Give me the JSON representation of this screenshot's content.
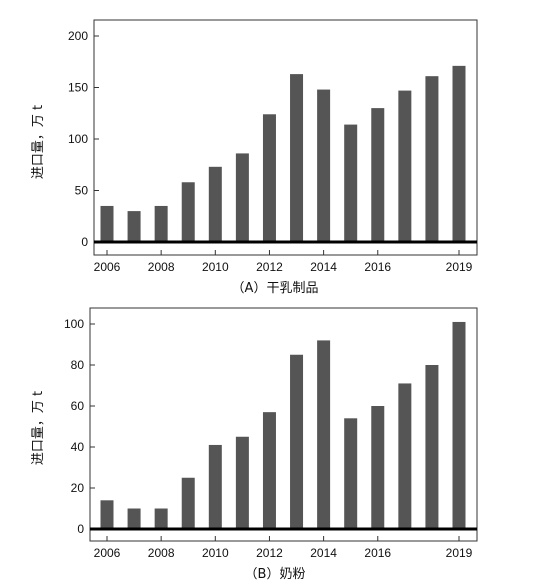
{
  "chart_data": [
    {
      "type": "bar",
      "caption": "（A）干乳制品",
      "ylabel": "进口量，万 t",
      "xlabel": "",
      "ylim": [
        0,
        200
      ],
      "yticks": [
        0,
        50,
        100,
        150,
        200
      ],
      "x": [
        2006,
        2007,
        2008,
        2009,
        2010,
        2011,
        2012,
        2013,
        2014,
        2015,
        2016,
        2017,
        2018,
        2019
      ],
      "xtick_labels": [
        "2006",
        "2008",
        "2010",
        "2012",
        "2014",
        "2016",
        "2019"
      ],
      "xtick_years": [
        2006,
        2008,
        2010,
        2012,
        2014,
        2016,
        2019
      ],
      "values": [
        35,
        30,
        35,
        58,
        73,
        86,
        124,
        163,
        148,
        114,
        130,
        147,
        161,
        171
      ],
      "bar_color": "#555555"
    },
    {
      "type": "bar",
      "caption": "（B）奶粉",
      "ylabel": "进口量，万 t",
      "xlabel": "",
      "ylim": [
        0,
        100
      ],
      "yticks": [
        0,
        20,
        40,
        60,
        80,
        100
      ],
      "x": [
        2006,
        2007,
        2008,
        2009,
        2010,
        2011,
        2012,
        2013,
        2014,
        2015,
        2016,
        2017,
        2018,
        2019
      ],
      "xtick_labels": [
        "2006",
        "2008",
        "2010",
        "2012",
        "2014",
        "2016",
        "2019"
      ],
      "xtick_years": [
        2006,
        2008,
        2010,
        2012,
        2014,
        2016,
        2019
      ],
      "values": [
        14,
        10,
        10,
        25,
        41,
        45,
        57,
        85,
        92,
        54,
        60,
        71,
        80,
        101
      ],
      "bar_color": "#555555"
    }
  ]
}
